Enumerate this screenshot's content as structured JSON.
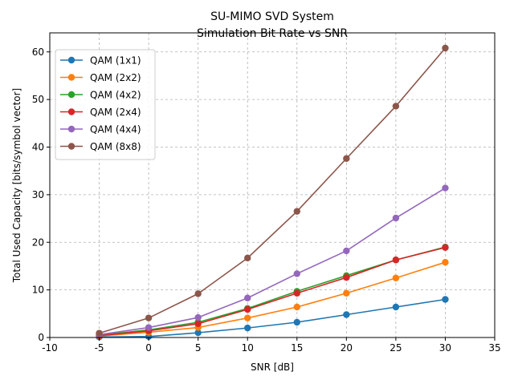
{
  "chart_data": {
    "type": "line",
    "title_lines": [
      "SU-MIMO SVD System",
      "Simulation Bit Rate vs SNR"
    ],
    "xlabel": "SNR [dB]",
    "ylabel": "Total Used Capacity [bits/symbol vector]",
    "x": [
      -5,
      0,
      5,
      10,
      15,
      20,
      25,
      30
    ],
    "xlim": [
      -10,
      35
    ],
    "ylim": [
      0,
      64
    ],
    "xticks": [
      -10,
      -5,
      0,
      5,
      10,
      15,
      20,
      25,
      30,
      35
    ],
    "yticks": [
      0,
      10,
      20,
      30,
      40,
      50,
      60
    ],
    "grid": true,
    "legend_position": "upper-left",
    "series": [
      {
        "name": "QAM (1x1)",
        "color": "#1f77b4",
        "values": [
          0.1,
          0.2,
          1.0,
          2.0,
          3.2,
          4.8,
          6.4,
          8.0
        ]
      },
      {
        "name": "QAM (2x2)",
        "color": "#ff7f0e",
        "values": [
          0.3,
          1.1,
          2.1,
          4.1,
          6.4,
          9.3,
          12.5,
          15.8
        ]
      },
      {
        "name": "QAM (4x2)",
        "color": "#2ca02c",
        "values": [
          0.5,
          1.6,
          3.2,
          6.1,
          9.7,
          13.0,
          16.3,
          19.0
        ]
      },
      {
        "name": "QAM (2x4)",
        "color": "#d62728",
        "values": [
          0.4,
          1.4,
          2.9,
          5.9,
          9.3,
          12.6,
          16.3,
          18.9
        ]
      },
      {
        "name": "QAM (4x4)",
        "color": "#9467bd",
        "values": [
          0.6,
          2.1,
          4.2,
          8.3,
          13.4,
          18.2,
          25.1,
          31.4
        ]
      },
      {
        "name": "QAM (8x8)",
        "color": "#8c564b",
        "values": [
          0.9,
          4.1,
          9.2,
          16.7,
          26.5,
          37.6,
          48.6,
          60.8
        ]
      }
    ]
  }
}
